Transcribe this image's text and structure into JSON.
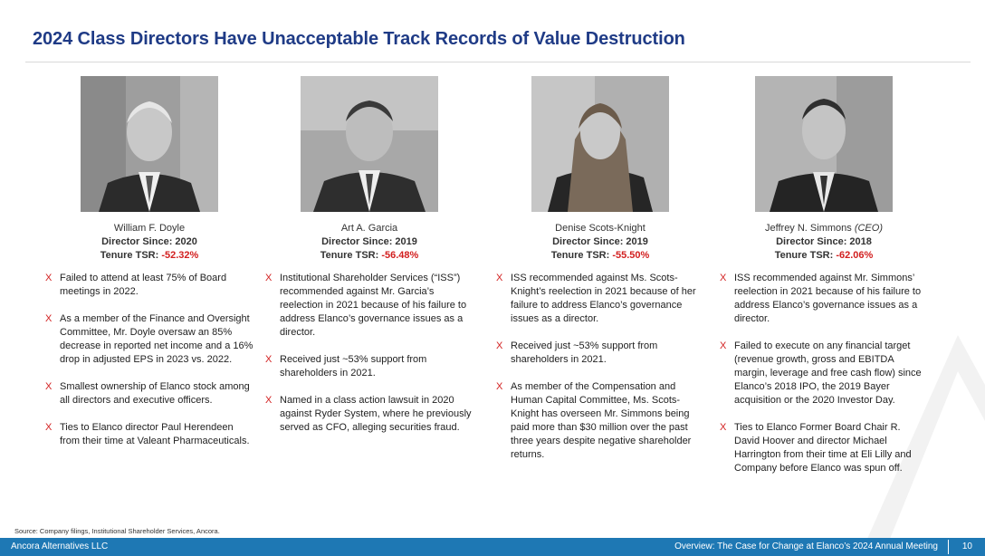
{
  "title": "2024 Class Directors Have Unacceptable Track Records of Value Destruction",
  "directors": [
    {
      "name": "William F. Doyle",
      "name_note": "",
      "since": "Director Since: 2020",
      "tsr_label": "Tenure TSR: ",
      "tsr_value": "-52.32%",
      "bullets": [
        "Failed to attend at least 75% of Board meetings in 2022.",
        "As a member of the Finance and Oversight Committee, Mr. Doyle oversaw an 85% decrease in reported net income and a 16% drop in adjusted EPS in 2023 vs. 2022.",
        "Smallest ownership of Elanco stock among all directors and executive officers.",
        "Ties to Elanco director Paul Herendeen from their time at Valeant Pharmaceuticals."
      ]
    },
    {
      "name": "Art A. Garcia",
      "name_note": "",
      "since": "Director Since: 2019",
      "tsr_label": "Tenure TSR: ",
      "tsr_value": "-56.48%",
      "bullets": [
        "Institutional Shareholder Services (“ISS”) recommended against Mr. Garcia’s reelection in 2021 because of his failure to address Elanco’s governance issues as a director.",
        "Received just ~53% support from shareholders in 2021.",
        "Named in a class action lawsuit in 2020 against Ryder System, where he previously served as CFO, alleging securities fraud."
      ]
    },
    {
      "name": "Denise Scots-Knight",
      "name_note": "",
      "since": "Director Since: 2019",
      "tsr_label": "Tenure TSR: ",
      "tsr_value": "-55.50%",
      "bullets": [
        "ISS recommended against Ms. Scots-Knight’s reelection in 2021 because of her failure to address Elanco’s governance issues as a director.",
        "Received just ~53% support from shareholders in 2021.",
        "As member of the Compensation and Human Capital Committee, Ms. Scots-Knight has overseen Mr. Simmons being paid more than $30 million over the past three years despite negative shareholder returns."
      ]
    },
    {
      "name": "Jeffrey N. Simmons ",
      "name_note": "(CEO)",
      "since": "Director Since: 2018",
      "tsr_label": "Tenure TSR: ",
      "tsr_value": "-62.06%",
      "bullets": [
        "ISS recommended against Mr. Simmons’ reelection in 2021 because of his failure to address Elanco’s governance issues as a director.",
        "Failed to execute on any financial target (revenue growth, gross and EBITDA margin, leverage and free cash flow) since Elanco’s 2018 IPO, the 2019 Bayer acquisition or the 2020 Investor Day.",
        "Ties to Elanco Former Board Chair R. David Hoover and director Michael Harrington from their time at Eli Lilly and Company before Elanco was spun off."
      ]
    }
  ],
  "bullet_marker": "X",
  "source": "Source: Company filings, Institutional Shareholder Services, Ancora.",
  "footer": {
    "company": "Ancora Alternatives LLC",
    "section": "Overview: The Case for Change at Elanco’s 2024 Annual Meeting",
    "page": "10"
  },
  "colors": {
    "title": "#1f3b86",
    "negative": "#d21f1f",
    "footer_bg": "#1e78b4"
  }
}
